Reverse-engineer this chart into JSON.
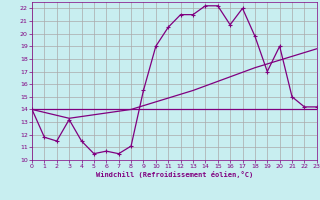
{
  "xlabel": "Windchill (Refroidissement éolien,°C)",
  "bg_color": "#c8eef0",
  "grid_color": "#aaaaaa",
  "line_color": "#800080",
  "xlim": [
    0,
    23
  ],
  "ylim": [
    10,
    22.5
  ],
  "yticks": [
    10,
    11,
    12,
    13,
    14,
    15,
    16,
    17,
    18,
    19,
    20,
    21,
    22
  ],
  "xticks": [
    0,
    1,
    2,
    3,
    4,
    5,
    6,
    7,
    8,
    9,
    10,
    11,
    12,
    13,
    14,
    15,
    16,
    17,
    18,
    19,
    20,
    21,
    22,
    23
  ],
  "line1_x": [
    0,
    1,
    2,
    3,
    4,
    5,
    6,
    7,
    8,
    9,
    10,
    11,
    12,
    13,
    14,
    15,
    16,
    17,
    18,
    19,
    20,
    21,
    22,
    23
  ],
  "line1_y": [
    14.0,
    11.8,
    11.5,
    13.2,
    11.5,
    10.5,
    10.7,
    10.5,
    11.1,
    15.5,
    19.0,
    20.5,
    21.5,
    21.5,
    22.2,
    22.2,
    20.7,
    22.0,
    19.8,
    17.0,
    19.0,
    15.0,
    14.2,
    14.2
  ],
  "line2_x": [
    0,
    23
  ],
  "line2_y": [
    14.0,
    14.0
  ],
  "line3_x": [
    0,
    3,
    8,
    13,
    18,
    23
  ],
  "line3_y": [
    14.0,
    13.3,
    14.0,
    15.5,
    17.3,
    18.8
  ]
}
